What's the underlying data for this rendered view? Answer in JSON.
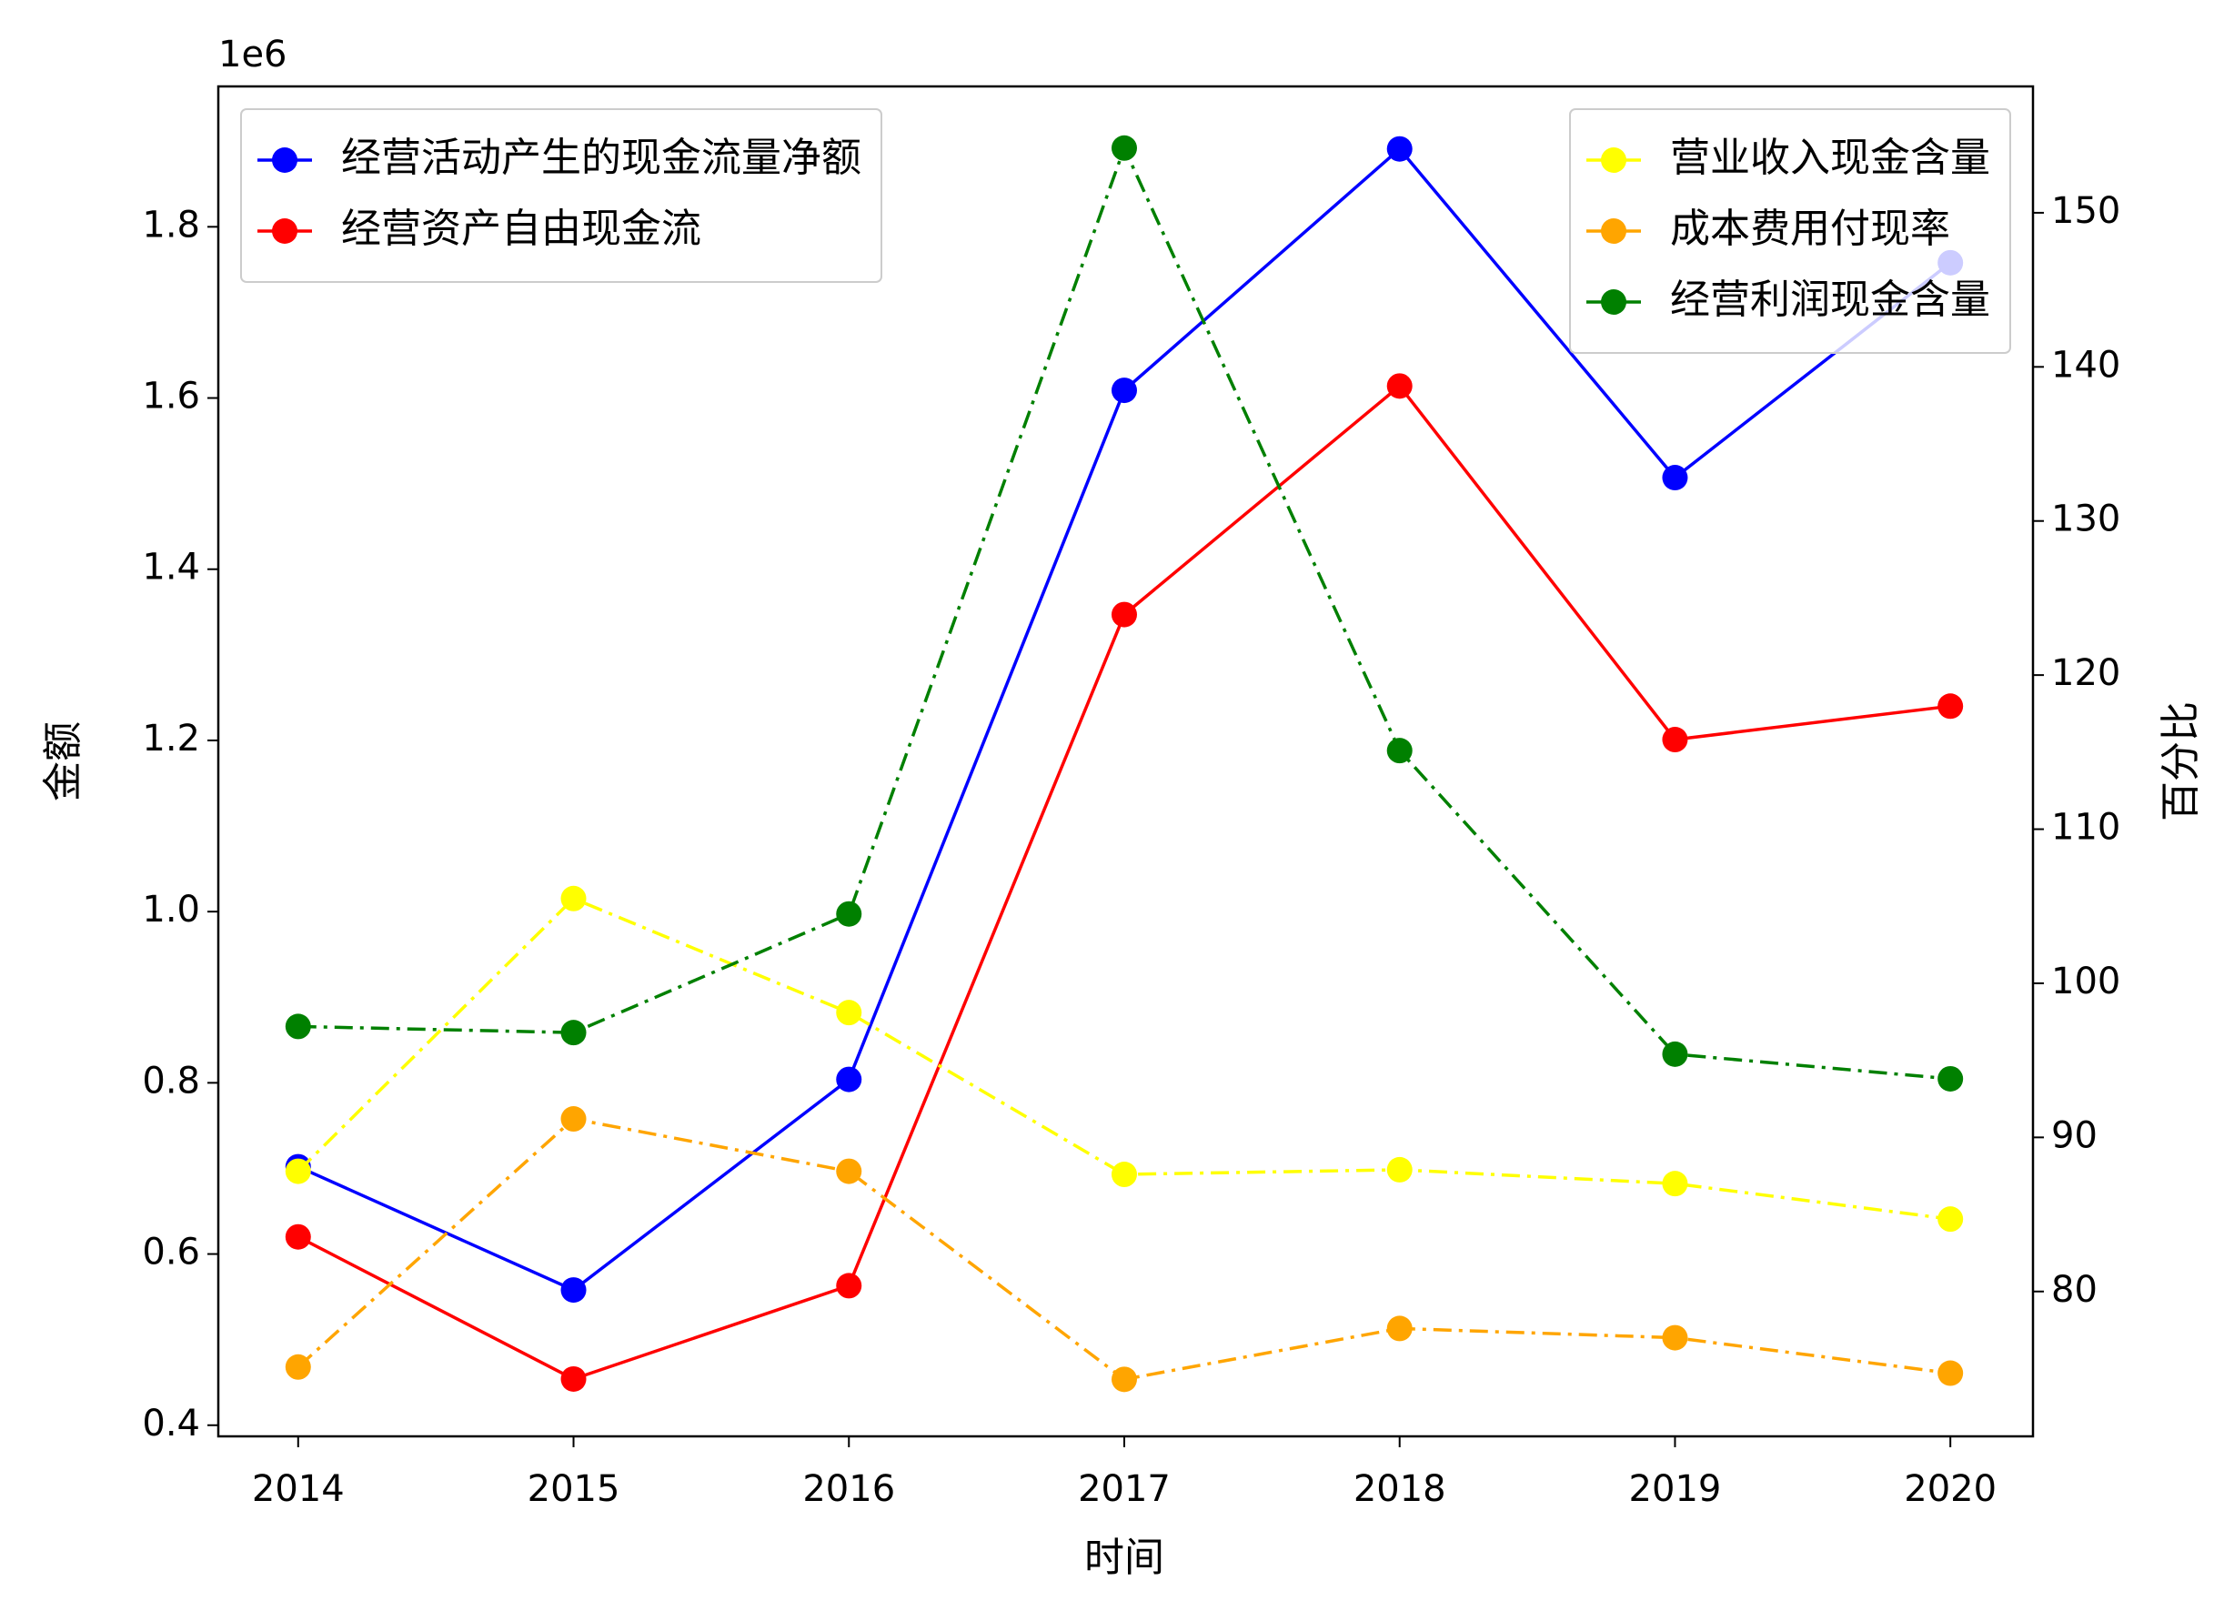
{
  "chart_data": {
    "type": "line",
    "xlabel": "时间",
    "ylabel": "金额",
    "y2label": "百分比",
    "y_offset_label": "1e6",
    "x": [
      2014,
      2015,
      2016,
      2017,
      2018,
      2019,
      2020
    ],
    "xlim": [
      2013.71,
      2020.3
    ],
    "xticks": [
      2014,
      2015,
      2016,
      2017,
      2018,
      2019,
      2020
    ],
    "ylim": [
      0.387,
      1.964
    ],
    "yticks": [
      0.4,
      0.6,
      0.8,
      {
        "value": 1,
        "label": "1.0"
      },
      1.2,
      1.4,
      1.6,
      1.8
    ],
    "y2lim": [
      70.6,
      158.2
    ],
    "y2ticks": [
      80,
      90,
      100,
      110,
      120,
      130,
      140,
      150
    ],
    "legend": {
      "y": "upper left",
      "y2": "upper right"
    },
    "series": [
      {
        "name": "经营活动产生的现金流量净额",
        "color": "#0000ff",
        "linestyle": "solid",
        "axis": "y",
        "values": [
          0.702,
          0.558,
          0.804,
          1.609,
          1.891,
          1.507,
          1.758
        ]
      },
      {
        "name": "经营资产自由现金流",
        "color": "#ff0000",
        "linestyle": "solid",
        "axis": "y",
        "values": [
          0.62,
          0.454,
          0.563,
          1.347,
          1.614,
          1.201,
          1.24
        ]
      },
      {
        "name": "营业收入现金含量",
        "color": "#ffff00",
        "linestyle": "dashdot",
        "axis": "y2",
        "values": [
          87.8,
          105.5,
          98.1,
          87.6,
          87.9,
          87.0,
          84.7
        ]
      },
      {
        "name": "成本费用付现率",
        "color": "#ffa500",
        "linestyle": "dashdot",
        "axis": "y2",
        "values": [
          75.1,
          91.2,
          87.8,
          74.3,
          77.6,
          77.0,
          74.7
        ]
      },
      {
        "name": "经营利润现金含量",
        "color": "#008000",
        "linestyle": "dashdot",
        "axis": "y2",
        "values": [
          97.2,
          96.8,
          104.5,
          154.2,
          115.1,
          95.4,
          93.8
        ]
      }
    ]
  }
}
